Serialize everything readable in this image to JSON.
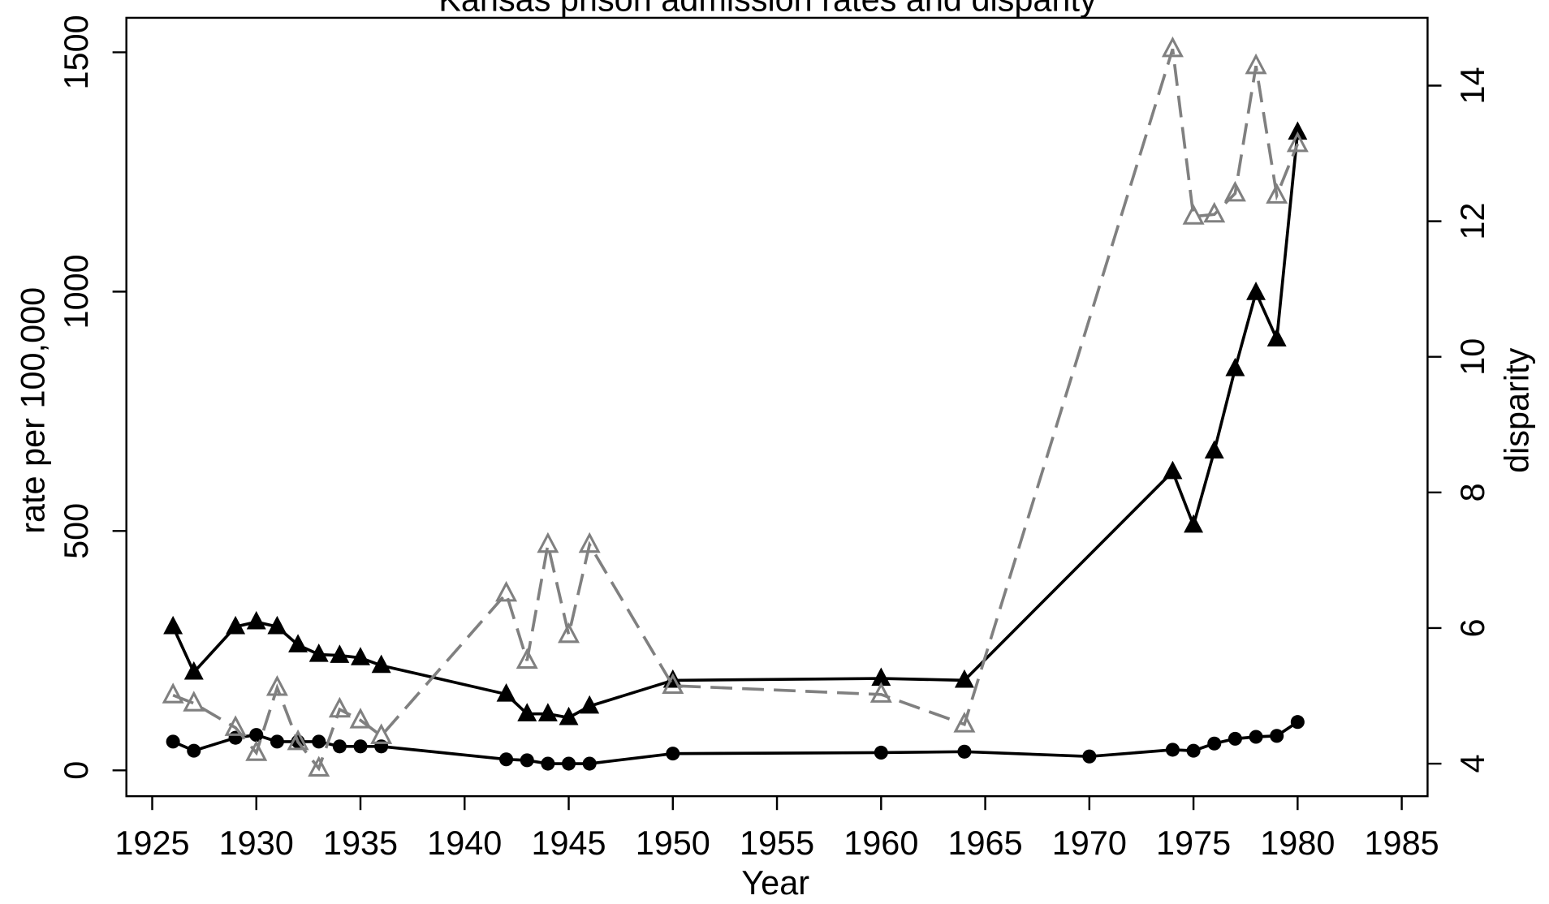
{
  "chart_data": {
    "type": "line",
    "title": "Kansas prison admission rates and disparity",
    "x_label": "Year",
    "y_label": "rate per 100,000",
    "y2_label": "disparity",
    "xlim": [
      1923.76,
      1986.24
    ],
    "xticks": [
      1925,
      1930,
      1935,
      1940,
      1945,
      1950,
      1955,
      1960,
      1965,
      1970,
      1975,
      1980,
      1985
    ],
    "ylim": [
      -54,
      1572
    ],
    "yticks": [
      0,
      500,
      1000,
      1500
    ],
    "y2lim": [
      3.52,
      15.0
    ],
    "y2ticks": [
      4,
      6,
      8,
      10,
      12,
      14
    ],
    "grid": false,
    "series": [
      {
        "color": "#000000",
        "marker": "triangle",
        "dash": false,
        "x": [
          1926,
          1927,
          1929,
          1930,
          1931,
          1932,
          1933,
          1934,
          1935,
          1936,
          1942,
          1943,
          1944,
          1945,
          1946,
          1950,
          1960,
          1964,
          1974,
          1975,
          1976,
          1977,
          1978,
          1979,
          1980
        ],
        "values": [
          300,
          205,
          300,
          310,
          300,
          262,
          242,
          240,
          235,
          219,
          159,
          118,
          118,
          110,
          134,
          188,
          192,
          188,
          624,
          512,
          667,
          839,
          998,
          901,
          1333
        ]
      },
      {
        "color": "#000000",
        "marker": "circle",
        "dash": false,
        "x": [
          1926,
          1927,
          1929,
          1930,
          1931,
          1932,
          1933,
          1934,
          1935,
          1936,
          1942,
          1943,
          1944,
          1945,
          1946,
          1950,
          1960,
          1964,
          1970,
          1974,
          1975,
          1976,
          1977,
          1978,
          1979,
          1980
        ],
        "values": [
          60,
          41,
          68,
          74,
          60,
          60,
          60,
          50,
          50,
          50,
          23,
          21,
          14,
          14,
          14,
          35,
          37,
          39,
          29,
          43,
          41,
          56,
          66,
          70,
          72,
          101
        ]
      },
      {
        "color": "#808080",
        "marker": "open-triangle",
        "dash": true,
        "axis": "y2",
        "x": [
          1926,
          1927,
          1929,
          1930,
          1931,
          1932,
          1933,
          1934,
          1935,
          1936,
          1942,
          1943,
          1944,
          1945,
          1946,
          1950,
          1960,
          1964,
          1974,
          1975,
          1976,
          1977,
          1978,
          1979,
          1980
        ],
        "values": [
          5.01,
          4.89,
          4.53,
          4.16,
          5.12,
          4.32,
          3.93,
          4.8,
          4.64,
          4.41,
          6.51,
          5.52,
          7.23,
          5.9,
          7.23,
          5.15,
          5.02,
          4.58,
          14.54,
          12.07,
          12.1,
          12.41,
          14.29,
          12.38,
          13.14
        ]
      }
    ]
  }
}
